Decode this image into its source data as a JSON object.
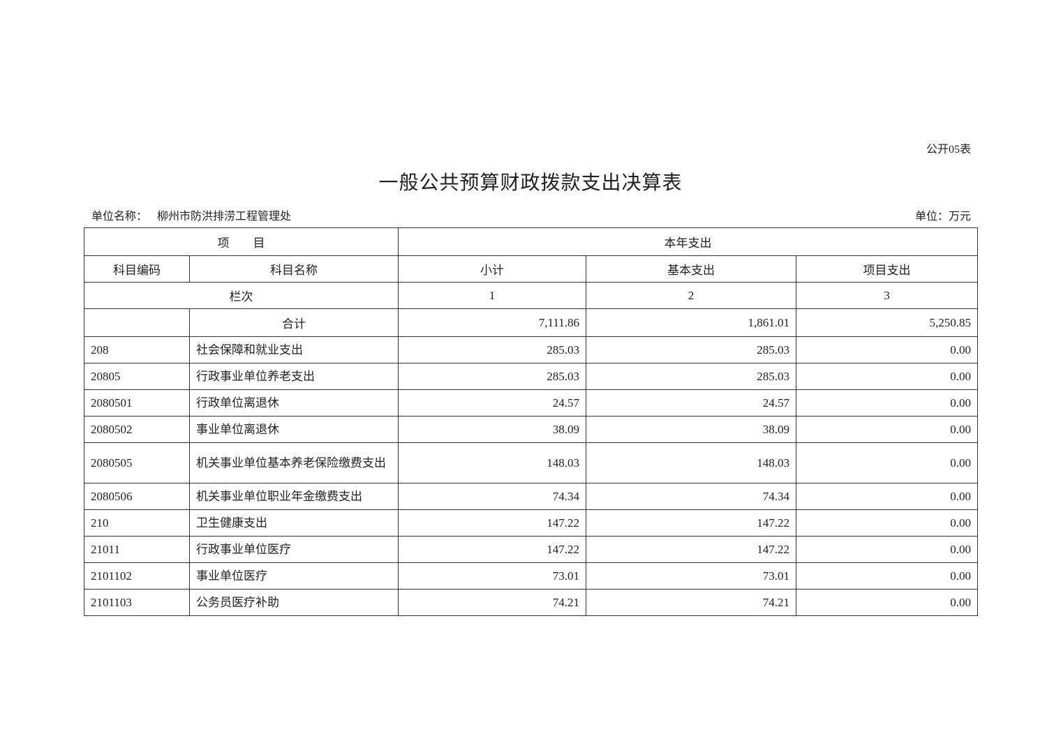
{
  "form_no": "公开05表",
  "title": "一般公共预算财政拨款支出决算表",
  "unit_name_label": "单位名称：",
  "unit_name": "柳州市防洪排涝工程管理处",
  "unit": "单位：万元",
  "header": {
    "item": "项　　目",
    "current_year": "本年支出",
    "code": "科目编码",
    "name": "科目名称",
    "subtotal": "小计",
    "basic": "基本支出",
    "project": "项目支出",
    "column_label": "栏次",
    "col1": "1",
    "col2": "2",
    "col3": "3"
  },
  "total": {
    "label": "合计",
    "subtotal": "7,111.86",
    "basic": "1,861.01",
    "project": "5,250.85"
  },
  "rows": [
    {
      "code": "208",
      "name": "社会保障和就业支出",
      "subtotal": "285.03",
      "basic": "285.03",
      "project": "0.00"
    },
    {
      "code": "20805",
      "name": "行政事业单位养老支出",
      "subtotal": "285.03",
      "basic": "285.03",
      "project": "0.00"
    },
    {
      "code": "2080501",
      "name": "行政单位离退休",
      "subtotal": "24.57",
      "basic": "24.57",
      "project": "0.00"
    },
    {
      "code": "2080502",
      "name": "事业单位离退休",
      "subtotal": "38.09",
      "basic": "38.09",
      "project": "0.00"
    },
    {
      "code": "2080505",
      "name": "机关事业单位基本养老保险缴费支出",
      "subtotal": "148.03",
      "basic": "148.03",
      "project": "0.00"
    },
    {
      "code": "2080506",
      "name": "机关事业单位职业年金缴费支出",
      "subtotal": "74.34",
      "basic": "74.34",
      "project": "0.00"
    },
    {
      "code": "210",
      "name": "卫生健康支出",
      "subtotal": "147.22",
      "basic": "147.22",
      "project": "0.00"
    },
    {
      "code": "21011",
      "name": "行政事业单位医疗",
      "subtotal": "147.22",
      "basic": "147.22",
      "project": "0.00"
    },
    {
      "code": "2101102",
      "name": "事业单位医疗",
      "subtotal": "73.01",
      "basic": "73.01",
      "project": "0.00"
    },
    {
      "code": "2101103",
      "name": "公务员医疗补助",
      "subtotal": "74.21",
      "basic": "74.21",
      "project": "0.00"
    }
  ]
}
